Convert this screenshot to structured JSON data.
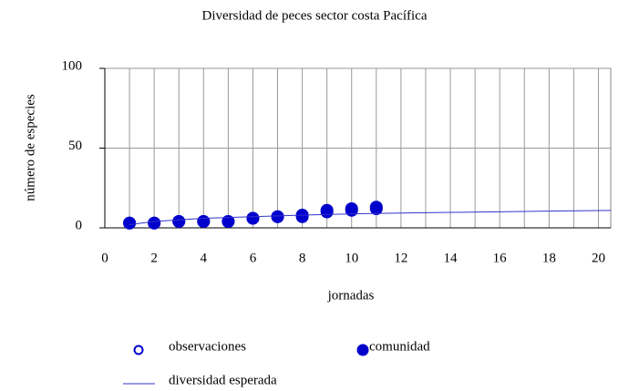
{
  "chart_data": {
    "type": "scatter",
    "title": "Diversidad de peces sector costa Pacífica",
    "x_label": "jornadas",
    "y_label": "número de especies",
    "xlim": [
      0,
      20.5
    ],
    "ylim": [
      0,
      100
    ],
    "xticks": [
      0,
      2,
      4,
      6,
      8,
      10,
      12,
      14,
      16,
      18,
      20
    ],
    "xminorticks": [
      1,
      3,
      5,
      7,
      9,
      11,
      13,
      15,
      17,
      19
    ],
    "yticks": [
      0,
      50,
      100
    ],
    "grid": true,
    "series": [
      {
        "name": "observaciones",
        "style": "open",
        "color": "#0000cc",
        "x": [
          1,
          2,
          3,
          4,
          5,
          6,
          7,
          8,
          9,
          10,
          11
        ],
        "values": [
          3,
          3,
          4,
          4,
          4,
          6,
          7,
          8,
          11,
          12,
          13
        ]
      },
      {
        "name": "comunidad",
        "style": "filled",
        "color": "#0000cc",
        "x": [
          1,
          2,
          3,
          4,
          5,
          6,
          7,
          8,
          9,
          10,
          11
        ],
        "values": [
          3,
          3,
          4,
          4,
          4,
          6,
          7,
          7,
          10,
          11,
          12
        ]
      },
      {
        "name": "diversidad esperada",
        "style": "line",
        "color": "#3333cc",
        "x": [
          1,
          2,
          4,
          6,
          8,
          10,
          12,
          14,
          16,
          18,
          20.5
        ],
        "values": [
          2,
          4,
          6,
          7,
          8,
          8.8,
          9.3,
          9.7,
          10.1,
          10.5,
          10.9
        ]
      }
    ]
  }
}
